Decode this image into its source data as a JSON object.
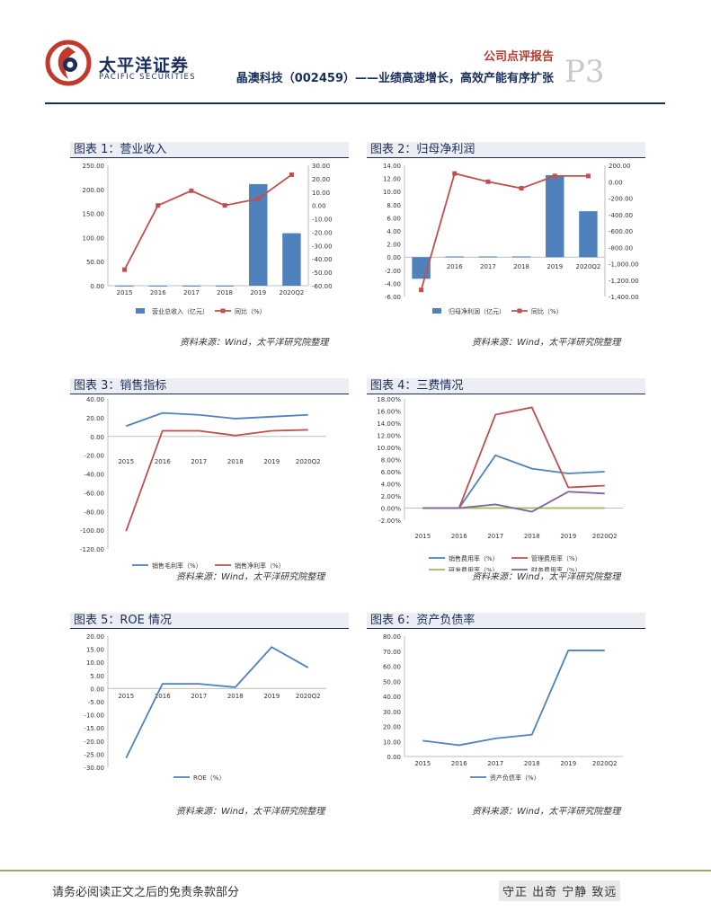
{
  "header": {
    "brand_cn": "太平洋证券",
    "brand_en": "PACIFIC SECURITIES",
    "report_type": "公司点评报告",
    "report_title": "晶澳科技（002459）——业绩高速增长，高效产能有序扩张",
    "page_number": "P3"
  },
  "colors": {
    "navy": "#1a2e5c",
    "blue": "#4f81bd",
    "red": "#c0504d",
    "green": "#9bbb59",
    "purple": "#8064a2"
  },
  "source_text": "资料来源：Wind，太平洋研究院整理",
  "footer": {
    "disclaimer": "请务必阅读正文之后的免责条款部分",
    "motto": "守正 出奇 宁静 致远"
  },
  "chart_data": [
    {
      "id": "c1",
      "type": "bar+line",
      "title": "图表 1：营业收入",
      "categories": [
        "2015",
        "2016",
        "2017",
        "2018",
        "2019",
        "2020Q2"
      ],
      "bars": {
        "name": "营业总收入（亿元）",
        "values": [
          0.2,
          0.2,
          0.2,
          0.2,
          211,
          109
        ]
      },
      "line": {
        "name": "同比（%）",
        "values": [
          -48,
          0,
          11,
          0,
          5,
          23
        ]
      },
      "y_left": {
        "min": 0,
        "max": 250,
        "step": 50,
        "decimals": 2,
        "ticks": [
          "0.00",
          "50.00",
          "100.00",
          "150.00",
          "200.00",
          "250.00"
        ]
      },
      "y_right": {
        "min": -60,
        "max": 30,
        "step": 10,
        "decimals": 2,
        "ticks": [
          "-60.00",
          "-50.00",
          "-40.00",
          "-30.00",
          "-20.00",
          "-10.00",
          "0.00",
          "10.00",
          "20.00",
          "30.00"
        ]
      }
    },
    {
      "id": "c2",
      "type": "bar+line",
      "title": "图表 2：归母净利润",
      "categories": [
        "2015",
        "2016",
        "2017",
        "2018",
        "2019",
        "2020Q2"
      ],
      "bars": {
        "name": "归母净利润（亿元）",
        "values": [
          -3.3,
          0.1,
          0.1,
          0.1,
          12.5,
          7.0
        ]
      },
      "line": {
        "name": "同比（%）",
        "values": [
          -1320,
          100,
          0,
          -80,
          70,
          70
        ]
      },
      "y_left": {
        "min": -6,
        "max": 14,
        "step": 2,
        "decimals": 2,
        "ticks": [
          "-6.00",
          "-4.00",
          "-2.00",
          "0.00",
          "2.00",
          "4.00",
          "6.00",
          "8.00",
          "10.00",
          "12.00",
          "14.00"
        ]
      },
      "y_right": {
        "min": -1400,
        "max": 200,
        "step": 200,
        "decimals": 2,
        "ticks": [
          "-1,400.00",
          "-1,200.00",
          "-1,000.00",
          "-800.00",
          "-600.00",
          "-400.00",
          "-200.00",
          "0.00",
          "200.00"
        ]
      }
    },
    {
      "id": "c3",
      "type": "line",
      "title": "图表 3：销售指标",
      "categories": [
        "2015",
        "2016",
        "2017",
        "2018",
        "2019",
        "2020Q2"
      ],
      "series": [
        {
          "name": "销售毛利率（%）",
          "color": "#4f81bd",
          "values": [
            11,
            25,
            23,
            19,
            21,
            23
          ]
        },
        {
          "name": "销售净利率（%）",
          "color": "#c0504d",
          "values": [
            -101,
            6,
            6,
            1,
            6,
            7
          ]
        }
      ],
      "y": {
        "min": -120,
        "max": 40,
        "step": 20,
        "decimals": 2,
        "ticks": [
          "-120.00",
          "-100.00",
          "-80.00",
          "-60.00",
          "-40.00",
          "-20.00",
          "0.00",
          "20.00",
          "40.00"
        ]
      }
    },
    {
      "id": "c4",
      "type": "line",
      "title": "图表 4：三费情况",
      "categories": [
        "2015",
        "2016",
        "2017",
        "2018",
        "2019",
        "2020Q2"
      ],
      "series": [
        {
          "name": "销售费用率（%）",
          "color": "#4f81bd",
          "values": [
            0,
            0,
            8.7,
            6.5,
            5.7,
            6.0
          ]
        },
        {
          "name": "管理费用率（%）",
          "color": "#c0504d",
          "values": [
            0,
            0,
            15.4,
            16.6,
            3.4,
            3.7
          ]
        },
        {
          "name": "研发费用率（%）",
          "color": "#9bbb59",
          "values": [
            0,
            0,
            0,
            0,
            0,
            0
          ]
        },
        {
          "name": "财务费用率（%）",
          "color": "#8064a2",
          "values": [
            0,
            0,
            0.6,
            -0.6,
            2.7,
            2.4
          ]
        }
      ],
      "y": {
        "min": -2,
        "max": 18,
        "step": 2,
        "decimals": 2,
        "ticks": [
          "-2.00%",
          "0.00%",
          "2.00%",
          "4.00%",
          "6.00%",
          "8.00%",
          "10.00%",
          "12.00%",
          "14.00%",
          "16.00%",
          "18.00%"
        ]
      }
    },
    {
      "id": "c5",
      "type": "line",
      "title": "图表 5：ROE 情况",
      "categories": [
        "2015",
        "2016",
        "2017",
        "2018",
        "2019",
        "2020Q2"
      ],
      "series": [
        {
          "name": "ROE（%）",
          "color": "#4f81bd",
          "values": [
            -26.5,
            1.8,
            1.8,
            0.5,
            15.8,
            8.0
          ]
        }
      ],
      "y": {
        "min": -30,
        "max": 20,
        "step": 5,
        "decimals": 2,
        "ticks": [
          "-30.00",
          "-25.00",
          "-20.00",
          "-15.00",
          "-10.00",
          "-5.00",
          "0.00",
          "5.00",
          "10.00",
          "15.00",
          "20.00"
        ]
      }
    },
    {
      "id": "c6",
      "type": "line",
      "title": "图表 6：资产负债率",
      "categories": [
        "2015",
        "2016",
        "2017",
        "2018",
        "2019",
        "2020Q2"
      ],
      "series": [
        {
          "name": "资产负债率（%）",
          "color": "#4f81bd",
          "values": [
            10.5,
            7.5,
            12,
            14.5,
            70.5,
            70.5
          ]
        }
      ],
      "y": {
        "min": 0,
        "max": 80,
        "step": 10,
        "decimals": 2,
        "ticks": [
          "0.00",
          "10.00",
          "20.00",
          "30.00",
          "40.00",
          "50.00",
          "60.00",
          "70.00",
          "80.00"
        ]
      }
    }
  ]
}
